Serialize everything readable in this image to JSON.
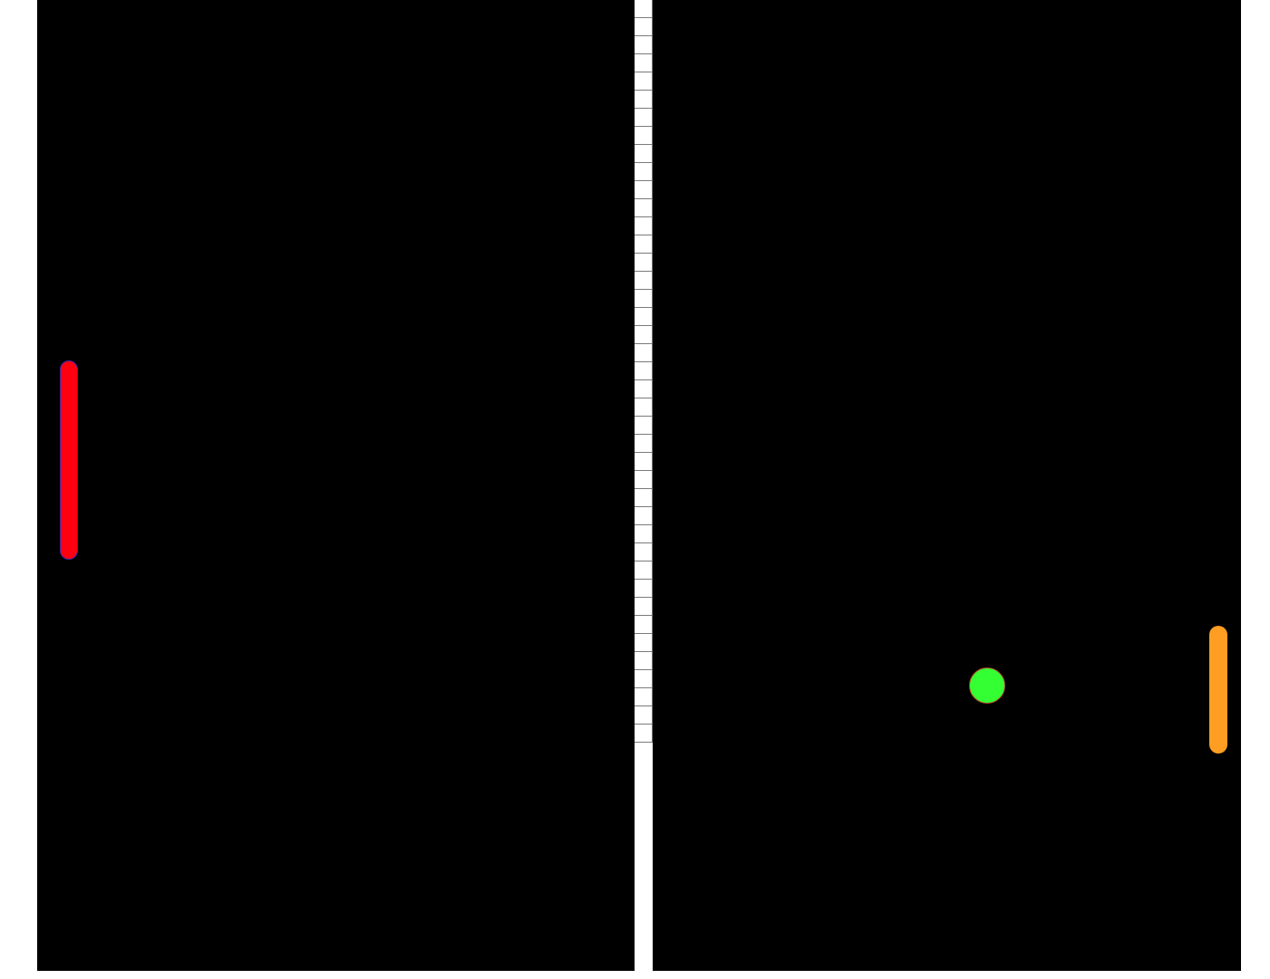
{
  "game": {
    "court_color": "#000000",
    "net_color": "#ffffff",
    "net_segment_line_color": "#7a7a7a",
    "left_paddle": {
      "color": "#ff0010",
      "outline_color": "#3a2aa8"
    },
    "right_paddle": {
      "color": "#ff9e22"
    },
    "ball": {
      "color": "#33ff33",
      "outline_color": "#b44a2a"
    }
  }
}
